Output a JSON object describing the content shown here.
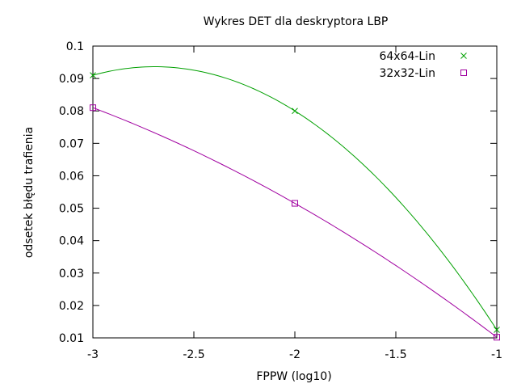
{
  "chart_data": {
    "type": "line",
    "title": "Wykres DET dla deskryptora LBP",
    "xlabel": "FPPW (log10)",
    "ylabel": "odsetek błędu trafienia",
    "xlim": [
      -3,
      -1
    ],
    "ylim": [
      0.01,
      0.1
    ],
    "xticks": [
      -3,
      -2.5,
      -2,
      -1.5,
      -1
    ],
    "xtick_labels": [
      "-3",
      "-2.5",
      "-2",
      "-1.5",
      "-1"
    ],
    "yticks": [
      0.01,
      0.02,
      0.03,
      0.04,
      0.05,
      0.06,
      0.07,
      0.08,
      0.09,
      0.1
    ],
    "ytick_labels": [
      "0.01",
      "0.02",
      "0.03",
      "0.04",
      "0.05",
      "0.06",
      "0.07",
      "0.08",
      "0.09",
      "0.1"
    ],
    "grid": false,
    "legend_position": "top-right",
    "series": [
      {
        "name": "64x64-Lin",
        "color": "#00a000",
        "marker": "x",
        "points": [
          {
            "x": -3,
            "y": 0.091
          },
          {
            "x": -2,
            "y": 0.08
          },
          {
            "x": -1,
            "y": 0.0125
          }
        ]
      },
      {
        "name": "32x32-Lin",
        "color": "#a000a0",
        "marker": "square",
        "points": [
          {
            "x": -3,
            "y": 0.081
          },
          {
            "x": -2,
            "y": 0.0515
          },
          {
            "x": -1,
            "y": 0.0102
          }
        ]
      }
    ]
  }
}
